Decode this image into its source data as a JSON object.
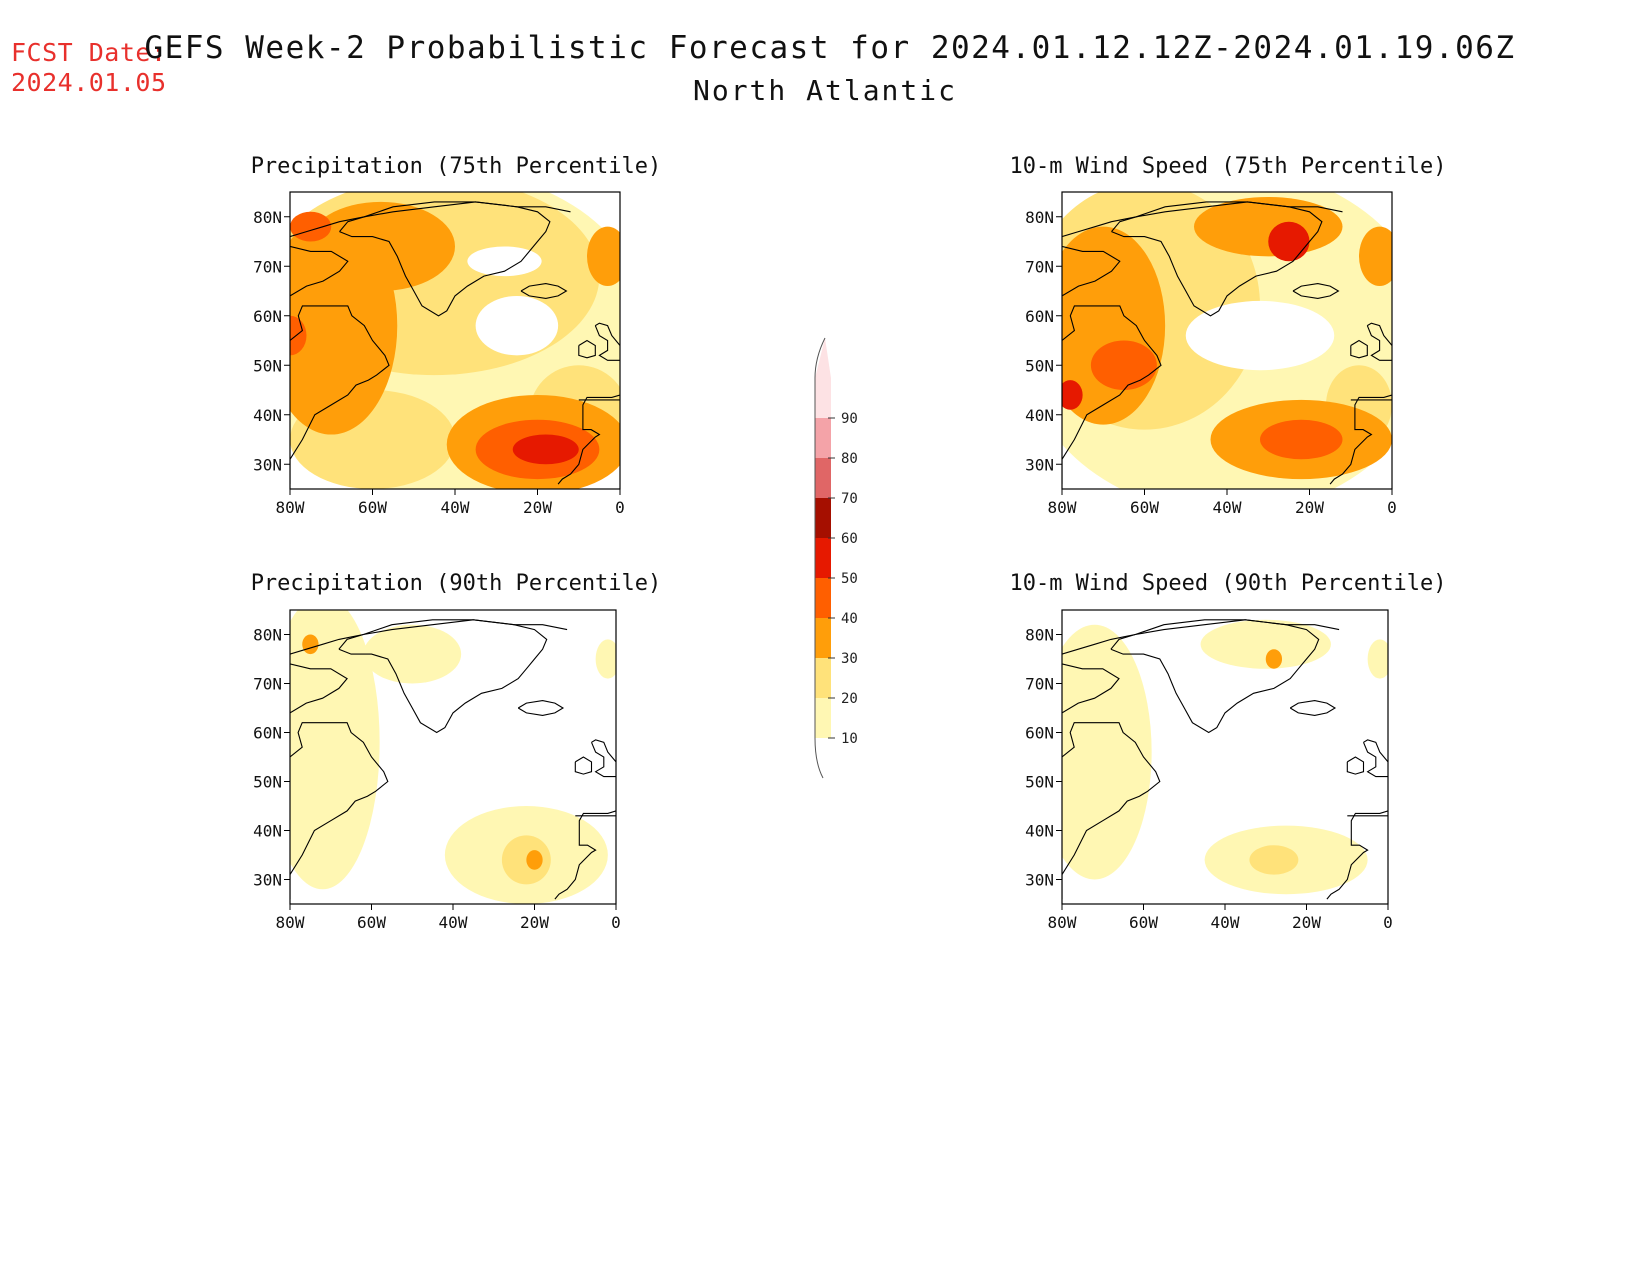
{
  "fcst_date": {
    "label": "FCST Date:",
    "value": "2024.01.05"
  },
  "title": {
    "main": "GEFS Week-2 Probabilistic Forecast for 2024.01.12.12Z-2024.01.19.06Z",
    "region": "North Atlantic"
  },
  "colors": {
    "bins": [
      "#ffffff",
      "#fff7b3",
      "#ffe27a",
      "#ff9e0a",
      "#ff5f00",
      "#e61900",
      "#a50f00",
      "#e06666",
      "#f4a3a8",
      "#fde2e4"
    ],
    "coast": "#000000"
  },
  "chart_data": [
    {
      "type": "heatmap",
      "title": "Precipitation (75th Percentile)",
      "x_ticks": [
        "80W",
        "60W",
        "40W",
        "20W",
        "0"
      ],
      "y_ticks": [
        "80N",
        "70N",
        "60N",
        "50N",
        "40N",
        "30N"
      ],
      "lon_range": [
        -80,
        0
      ],
      "lat_range": [
        25,
        85
      ],
      "blobs": [
        {
          "lon": -40,
          "lat": 55,
          "rx": 48,
          "ry": 34,
          "v": 10
        },
        {
          "lon": -45,
          "lat": 68,
          "rx": 40,
          "ry": 20,
          "v": 20
        },
        {
          "lon": -70,
          "lat": 58,
          "rx": 16,
          "ry": 22,
          "v": 30
        },
        {
          "lon": -58,
          "lat": 74,
          "rx": 18,
          "ry": 9,
          "v": 30
        },
        {
          "lon": -75,
          "lat": 78,
          "rx": 5,
          "ry": 3,
          "v": 40
        },
        {
          "lon": -80,
          "lat": 56,
          "rx": 4,
          "ry": 4,
          "v": 40
        },
        {
          "lon": -60,
          "lat": 35,
          "rx": 20,
          "ry": 10,
          "v": 20
        },
        {
          "lon": -20,
          "lat": 34,
          "rx": 22,
          "ry": 10,
          "v": 30
        },
        {
          "lon": -20,
          "lat": 33,
          "rx": 15,
          "ry": 6,
          "v": 40
        },
        {
          "lon": -18,
          "lat": 33,
          "rx": 8,
          "ry": 3,
          "v": 50
        },
        {
          "lon": -3,
          "lat": 72,
          "rx": 5,
          "ry": 6,
          "v": 30
        },
        {
          "lon": -10,
          "lat": 40,
          "rx": 12,
          "ry": 10,
          "v": 20
        }
      ],
      "holes": [
        {
          "lon": -25,
          "lat": 58,
          "rx": 10,
          "ry": 6
        },
        {
          "lon": -28,
          "lat": 71,
          "rx": 9,
          "ry": 3
        }
      ]
    },
    {
      "type": "heatmap",
      "title": "10-m Wind Speed (75th Percentile)",
      "x_ticks": [
        "80W",
        "60W",
        "40W",
        "20W",
        "0"
      ],
      "y_ticks": [
        "80N",
        "70N",
        "60N",
        "50N",
        "40N",
        "30N"
      ],
      "lon_range": [
        -80,
        0
      ],
      "lat_range": [
        25,
        85
      ],
      "blobs": [
        {
          "lon": -40,
          "lat": 55,
          "rx": 50,
          "ry": 35,
          "v": 10
        },
        {
          "lon": -60,
          "lat": 62,
          "rx": 28,
          "ry": 25,
          "v": 20
        },
        {
          "lon": -70,
          "lat": 58,
          "rx": 15,
          "ry": 20,
          "v": 30
        },
        {
          "lon": -30,
          "lat": 78,
          "rx": 18,
          "ry": 6,
          "v": 30
        },
        {
          "lon": -25,
          "lat": 75,
          "rx": 5,
          "ry": 4,
          "v": 50
        },
        {
          "lon": -65,
          "lat": 50,
          "rx": 8,
          "ry": 5,
          "v": 40
        },
        {
          "lon": -22,
          "lat": 35,
          "rx": 22,
          "ry": 8,
          "v": 30
        },
        {
          "lon": -22,
          "lat": 35,
          "rx": 10,
          "ry": 4,
          "v": 40
        },
        {
          "lon": -78,
          "lat": 44,
          "rx": 3,
          "ry": 3,
          "v": 50
        },
        {
          "lon": -3,
          "lat": 72,
          "rx": 5,
          "ry": 6,
          "v": 30
        },
        {
          "lon": -8,
          "lat": 42,
          "rx": 8,
          "ry": 8,
          "v": 20
        }
      ],
      "holes": [
        {
          "lon": -32,
          "lat": 56,
          "rx": 18,
          "ry": 7
        }
      ]
    },
    {
      "type": "heatmap",
      "title": "Precipitation (90th Percentile)",
      "x_ticks": [
        "80W",
        "60W",
        "40W",
        "20W",
        "0"
      ],
      "y_ticks": [
        "80N",
        "70N",
        "60N",
        "50N",
        "40N",
        "30N"
      ],
      "lon_range": [
        -80,
        0
      ],
      "lat_range": [
        25,
        85
      ],
      "blobs": [
        {
          "lon": -72,
          "lat": 58,
          "rx": 14,
          "ry": 30,
          "v": 10
        },
        {
          "lon": -50,
          "lat": 76,
          "rx": 12,
          "ry": 6,
          "v": 10
        },
        {
          "lon": -22,
          "lat": 35,
          "rx": 20,
          "ry": 10,
          "v": 10
        },
        {
          "lon": -22,
          "lat": 34,
          "rx": 6,
          "ry": 5,
          "v": 20
        },
        {
          "lon": -20,
          "lat": 34,
          "rx": 2,
          "ry": 2,
          "v": 30
        },
        {
          "lon": -75,
          "lat": 78,
          "rx": 2,
          "ry": 2,
          "v": 30
        },
        {
          "lon": -2,
          "lat": 75,
          "rx": 3,
          "ry": 4,
          "v": 10
        }
      ],
      "holes": []
    },
    {
      "type": "heatmap",
      "title": "10-m Wind Speed (90th Percentile)",
      "x_ticks": [
        "80W",
        "60W",
        "40W",
        "20W",
        "0"
      ],
      "y_ticks": [
        "80N",
        "70N",
        "60N",
        "50N",
        "40N",
        "30N"
      ],
      "lon_range": [
        -80,
        0
      ],
      "lat_range": [
        25,
        85
      ],
      "blobs": [
        {
          "lon": -72,
          "lat": 56,
          "rx": 14,
          "ry": 26,
          "v": 10
        },
        {
          "lon": -30,
          "lat": 78,
          "rx": 16,
          "ry": 5,
          "v": 10
        },
        {
          "lon": -25,
          "lat": 34,
          "rx": 20,
          "ry": 7,
          "v": 10
        },
        {
          "lon": -28,
          "lat": 34,
          "rx": 6,
          "ry": 3,
          "v": 20
        },
        {
          "lon": -28,
          "lat": 75,
          "rx": 2,
          "ry": 2,
          "v": 30
        },
        {
          "lon": -2,
          "lat": 75,
          "rx": 3,
          "ry": 4,
          "v": 10
        }
      ],
      "holes": []
    }
  ],
  "colorbar": {
    "labels": [
      "10",
      "20",
      "30",
      "40",
      "50",
      "60",
      "70",
      "80",
      "90"
    ]
  }
}
